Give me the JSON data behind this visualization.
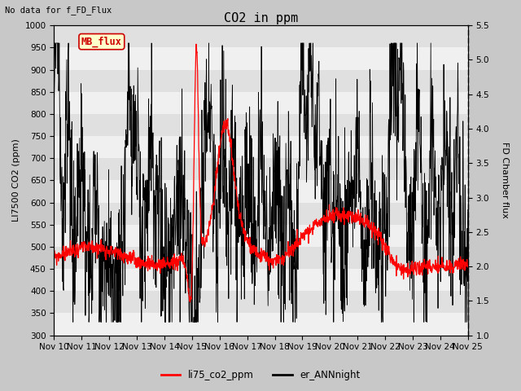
{
  "title": "CO2 in ppm",
  "top_left_text": "No data for f_FD_Flux",
  "ylabel_left": "LI7500 CO2 (ppm)",
  "ylabel_right": "FD Chamber flux",
  "ylim_left": [
    300,
    1000
  ],
  "ylim_right": [
    1.0,
    5.5
  ],
  "yticks_left": [
    300,
    350,
    400,
    450,
    500,
    550,
    600,
    650,
    700,
    750,
    800,
    850,
    900,
    950,
    1000
  ],
  "yticks_right": [
    1.0,
    1.5,
    2.0,
    2.5,
    3.0,
    3.5,
    4.0,
    4.5,
    5.0,
    5.5
  ],
  "xtick_labels": [
    "Nov 10",
    "Nov 11",
    "Nov 12",
    "Nov 13",
    "Nov 14",
    "Nov 15",
    "Nov 16",
    "Nov 17",
    "Nov 18",
    "Nov 19",
    "Nov 20",
    "Nov 21",
    "Nov 22",
    "Nov 23",
    "Nov 24",
    "Nov 25"
  ],
  "outer_bg_color": "#c8c8c8",
  "plot_bg_color": "#e0e0e0",
  "line_red_color": "#ff0000",
  "line_black_color": "#000000",
  "legend_label_red": "li75_co2_ppm",
  "legend_label_black": "er_ANNnight",
  "mb_flux_label": "MB_flux",
  "mb_flux_bg": "#ffffcc",
  "mb_flux_border": "#cc0000",
  "title_fontsize": 11,
  "axis_label_fontsize": 8,
  "tick_fontsize": 7.5
}
